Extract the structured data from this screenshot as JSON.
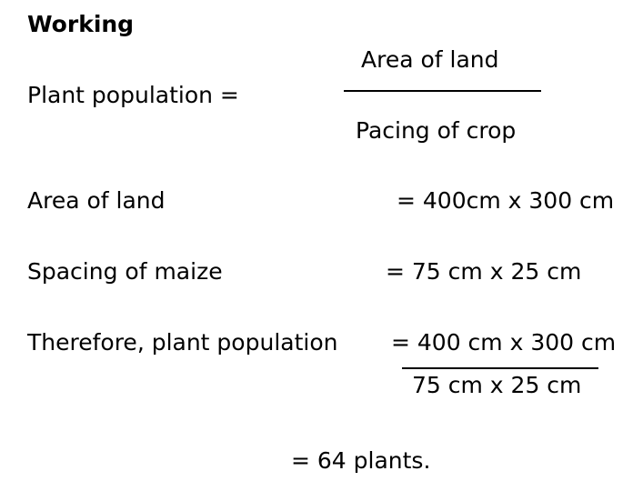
{
  "heading": "Working",
  "formula": {
    "label": "Plant population =",
    "numerator": "Area of land",
    "denominator": "Pacing of crop"
  },
  "area": {
    "label": "Area of land",
    "value": "=  400cm x 300 cm"
  },
  "spacing": {
    "label": "Spacing of maize",
    "value": "= 75 cm x 25 cm"
  },
  "calculation": {
    "label": "Therefore, plant population",
    "numerator": "= 400 cm x 300 cm",
    "denominator": "75 cm x 25 cm"
  },
  "result": "=   64 plants."
}
